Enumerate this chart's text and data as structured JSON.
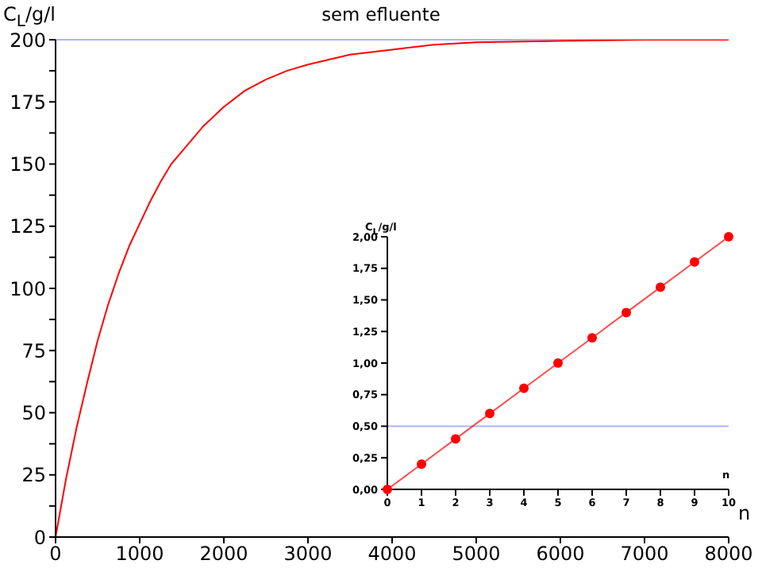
{
  "chart_data": [
    {
      "type": "line",
      "title": "sem efluente",
      "xlabel": "n",
      "ylabel": "C$_{L}$/g/l",
      "x": [
        0,
        125,
        250,
        375,
        500,
        625,
        750,
        875,
        1000,
        1125,
        1250,
        1375,
        1500,
        1750,
        2000,
        2250,
        2500,
        2750,
        3000,
        3500,
        4000,
        4500,
        5000,
        6000,
        7000,
        8000
      ],
      "series": [
        {
          "color": "#ff0000",
          "values": [
            0,
            23.5,
            44,
            62,
            79,
            93.5,
            106,
            117,
            126,
            135,
            143,
            150,
            155,
            165,
            173,
            179.5,
            184,
            187.5,
            190,
            194,
            196,
            198,
            199,
            199.5,
            200,
            200
          ]
        }
      ],
      "xlim": [
        0,
        8000
      ],
      "xticks": [
        0,
        1000,
        2000,
        3000,
        4000,
        5000,
        6000,
        7000,
        8000
      ],
      "ylim": [
        0,
        200
      ],
      "yticks": [
        0,
        {
          "value": 12.5,
          "label": null
        },
        25,
        {
          "value": 37.5,
          "label": null
        },
        50,
        {
          "value": 62.5,
          "label": null
        },
        75,
        {
          "value": 87.5,
          "label": null
        },
        100,
        {
          "value": 112.5,
          "label": null
        },
        125,
        {
          "value": 137.5,
          "label": null
        },
        150,
        {
          "value": 162.5,
          "label": null
        },
        175,
        {
          "value": 187.5,
          "label": null
        },
        200
      ],
      "ref_lines": [
        {
          "axis": "y",
          "value": 200,
          "color": "#aab4ff"
        }
      ],
      "grid": false,
      "legend": false,
      "marker": "none"
    },
    {
      "type": "line",
      "xlabel": "n",
      "ylabel": "C$_{L}$/g/l",
      "x": [
        0,
        1,
        2,
        3,
        4,
        5,
        6,
        7,
        8,
        9,
        10
      ],
      "series": [
        {
          "color": "#ff0000",
          "values": [
            0,
            0.2,
            0.4,
            0.6,
            0.8,
            1.0,
            1.2,
            1.4,
            1.6,
            1.8,
            2.0
          ]
        }
      ],
      "xlim": [
        0,
        10
      ],
      "xticks": [
        0,
        1,
        2,
        3,
        4,
        5,
        6,
        7,
        8,
        9,
        10
      ],
      "ylim": [
        0,
        2
      ],
      "yticks": [
        {
          "value": 0,
          "label": "0,00"
        },
        {
          "value": 0.25,
          "label": "0,25"
        },
        {
          "value": 0.5,
          "label": "0,50"
        },
        {
          "value": 0.75,
          "label": "0,75"
        },
        {
          "value": 1,
          "label": "1,00"
        },
        {
          "value": 1.25,
          "label": "1,25"
        },
        {
          "value": 1.5,
          "label": "1,50"
        },
        {
          "value": 1.75,
          "label": "1,75"
        },
        {
          "value": 2,
          "label": "2,00"
        }
      ],
      "ref_lines": [
        {
          "axis": "y",
          "value": 0.5,
          "color": "#aab4ff"
        }
      ],
      "grid": false,
      "legend": false,
      "marker": "circle"
    }
  ]
}
